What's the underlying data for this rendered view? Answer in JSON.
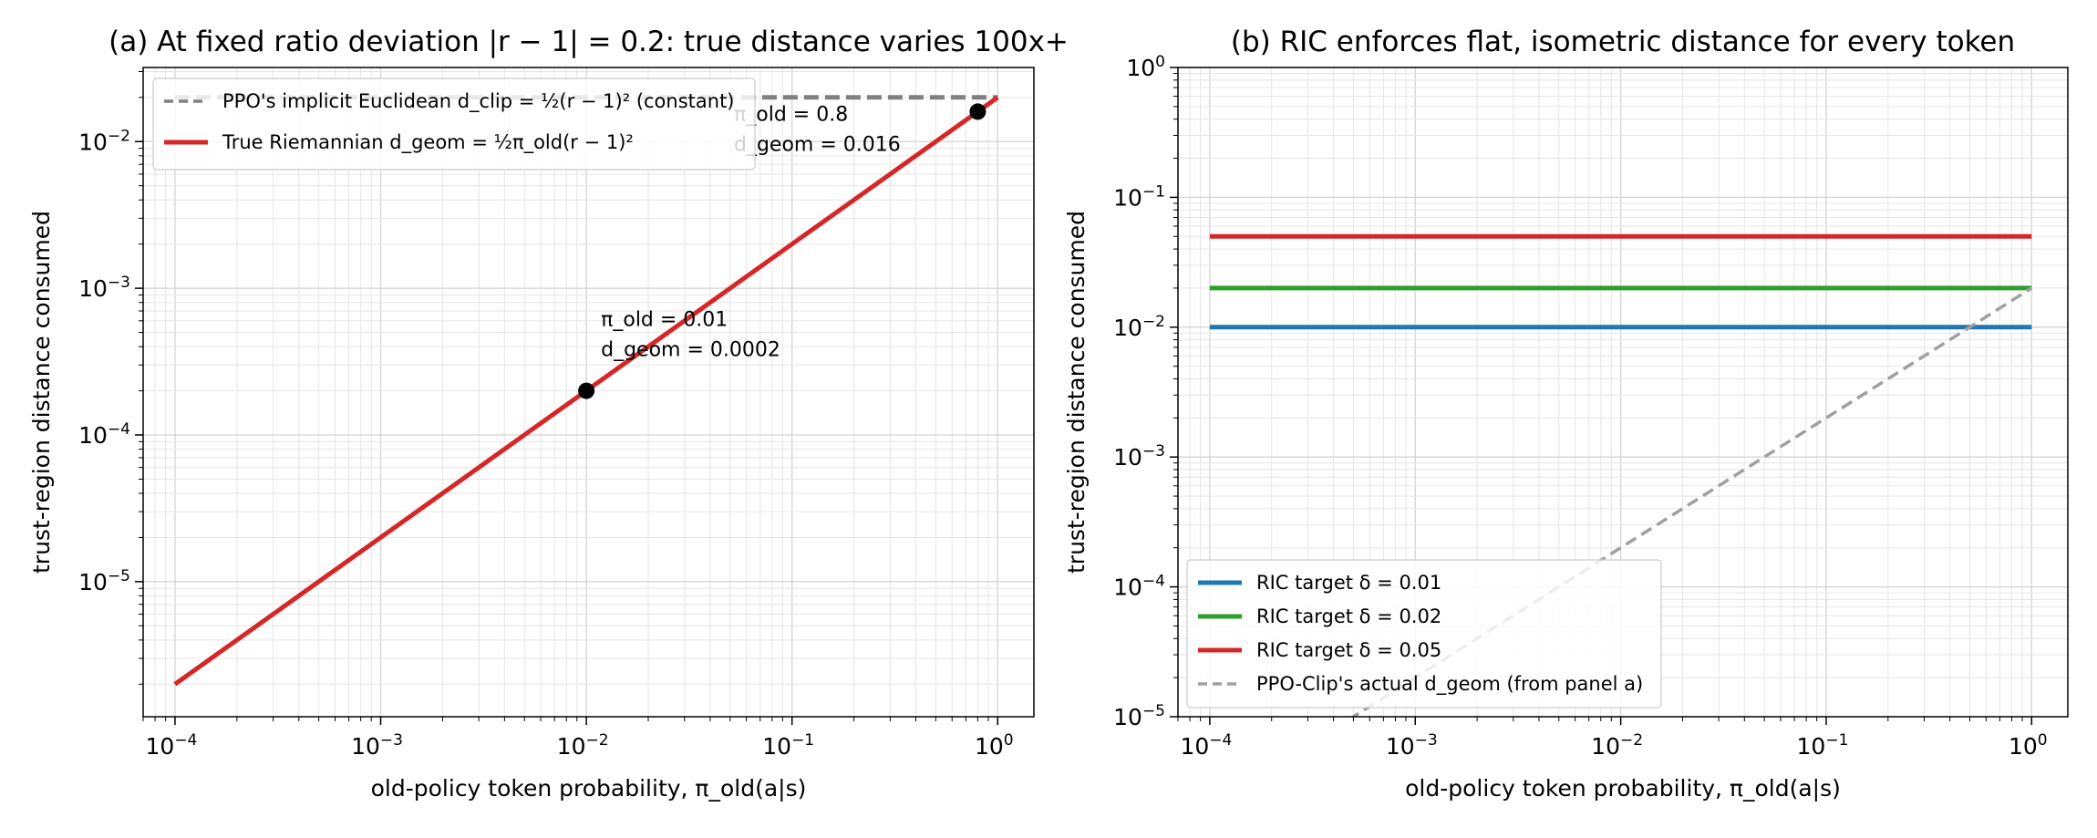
{
  "chart_data": [
    {
      "type": "line",
      "title": "(a) At fixed ratio deviation |r − 1| = 0.2: true distance varies 100x+",
      "xlabel": "old-policy token probability, π_old(a|s)",
      "ylabel": "trust-region distance consumed",
      "xscale": "log",
      "yscale": "log",
      "xlim": [
        7e-05,
        1.5
      ],
      "ylim": [
        1.2e-06,
        0.032
      ],
      "xticks": [
        {
          "value": 0.0001,
          "mantissa": "10",
          "exp": "−4"
        },
        {
          "value": 0.001,
          "mantissa": "10",
          "exp": "−3"
        },
        {
          "value": 0.01,
          "mantissa": "10",
          "exp": "−2"
        },
        {
          "value": 0.1,
          "mantissa": "10",
          "exp": "−1"
        },
        {
          "value": 1,
          "mantissa": "10",
          "exp": "0"
        }
      ],
      "yticks": [
        {
          "value": 1e-05,
          "mantissa": "10",
          "exp": "−5"
        },
        {
          "value": 0.0001,
          "mantissa": "10",
          "exp": "−4"
        },
        {
          "value": 0.001,
          "mantissa": "10",
          "exp": "−3"
        },
        {
          "value": 0.01,
          "mantissa": "10",
          "exp": "−2"
        }
      ],
      "grid": true,
      "legend_position": "top-left",
      "series": [
        {
          "name": "PPO's implicit Euclidean d_clip = ½(r − 1)² (constant)",
          "color": "#808080",
          "dashed": true,
          "x": [
            0.0001,
            1
          ],
          "y": [
            0.02,
            0.02
          ]
        },
        {
          "name": "True Riemannian d_geom = ½π_old(r − 1)²",
          "color": "#d62728",
          "dashed": false,
          "x": [
            0.0001,
            1
          ],
          "y": [
            2e-06,
            0.02
          ]
        }
      ],
      "points": [
        {
          "x": 0.01,
          "y": 0.0002,
          "label_line1": "π_old = 0.01",
          "label_line2": "d_geom = 0.0002"
        },
        {
          "x": 0.8,
          "y": 0.016,
          "label_line1": "π_old = 0.8",
          "label_line2": "d_geom = 0.016"
        }
      ]
    },
    {
      "type": "line",
      "title": "(b) RIC enforces flat, isometric distance for every token",
      "xlabel": "old-policy token probability, π_old(a|s)",
      "ylabel": "trust-region distance consumed",
      "xscale": "log",
      "yscale": "log",
      "xlim": [
        7e-05,
        1.5
      ],
      "ylim": [
        1e-05,
        1
      ],
      "xticks": [
        {
          "value": 0.0001,
          "mantissa": "10",
          "exp": "−4"
        },
        {
          "value": 0.001,
          "mantissa": "10",
          "exp": "−3"
        },
        {
          "value": 0.01,
          "mantissa": "10",
          "exp": "−2"
        },
        {
          "value": 0.1,
          "mantissa": "10",
          "exp": "−1"
        },
        {
          "value": 1,
          "mantissa": "10",
          "exp": "0"
        }
      ],
      "yticks": [
        {
          "value": 1e-05,
          "mantissa": "10",
          "exp": "−5"
        },
        {
          "value": 0.0001,
          "mantissa": "10",
          "exp": "−4"
        },
        {
          "value": 0.001,
          "mantissa": "10",
          "exp": "−3"
        },
        {
          "value": 0.01,
          "mantissa": "10",
          "exp": "−2"
        },
        {
          "value": 0.1,
          "mantissa": "10",
          "exp": "−1"
        },
        {
          "value": 1,
          "mantissa": "10",
          "exp": "0"
        }
      ],
      "grid": true,
      "legend_position": "bottom-left",
      "series": [
        {
          "name": "RIC target δ = 0.01",
          "color": "#1f77b4",
          "dashed": false,
          "x": [
            0.0001,
            1
          ],
          "y": [
            0.01,
            0.01
          ]
        },
        {
          "name": "RIC target δ = 0.02",
          "color": "#2ca02c",
          "dashed": false,
          "x": [
            0.0001,
            1
          ],
          "y": [
            0.02,
            0.02
          ]
        },
        {
          "name": "RIC target δ = 0.05",
          "color": "#d62728",
          "dashed": false,
          "x": [
            0.0001,
            1
          ],
          "y": [
            0.05,
            0.05
          ]
        },
        {
          "name": "PPO-Clip's actual d_geom (from panel a)",
          "color": "#a0a0a0",
          "dashed": true,
          "x": [
            0.0001,
            1
          ],
          "y": [
            2e-06,
            0.02
          ]
        }
      ]
    }
  ]
}
